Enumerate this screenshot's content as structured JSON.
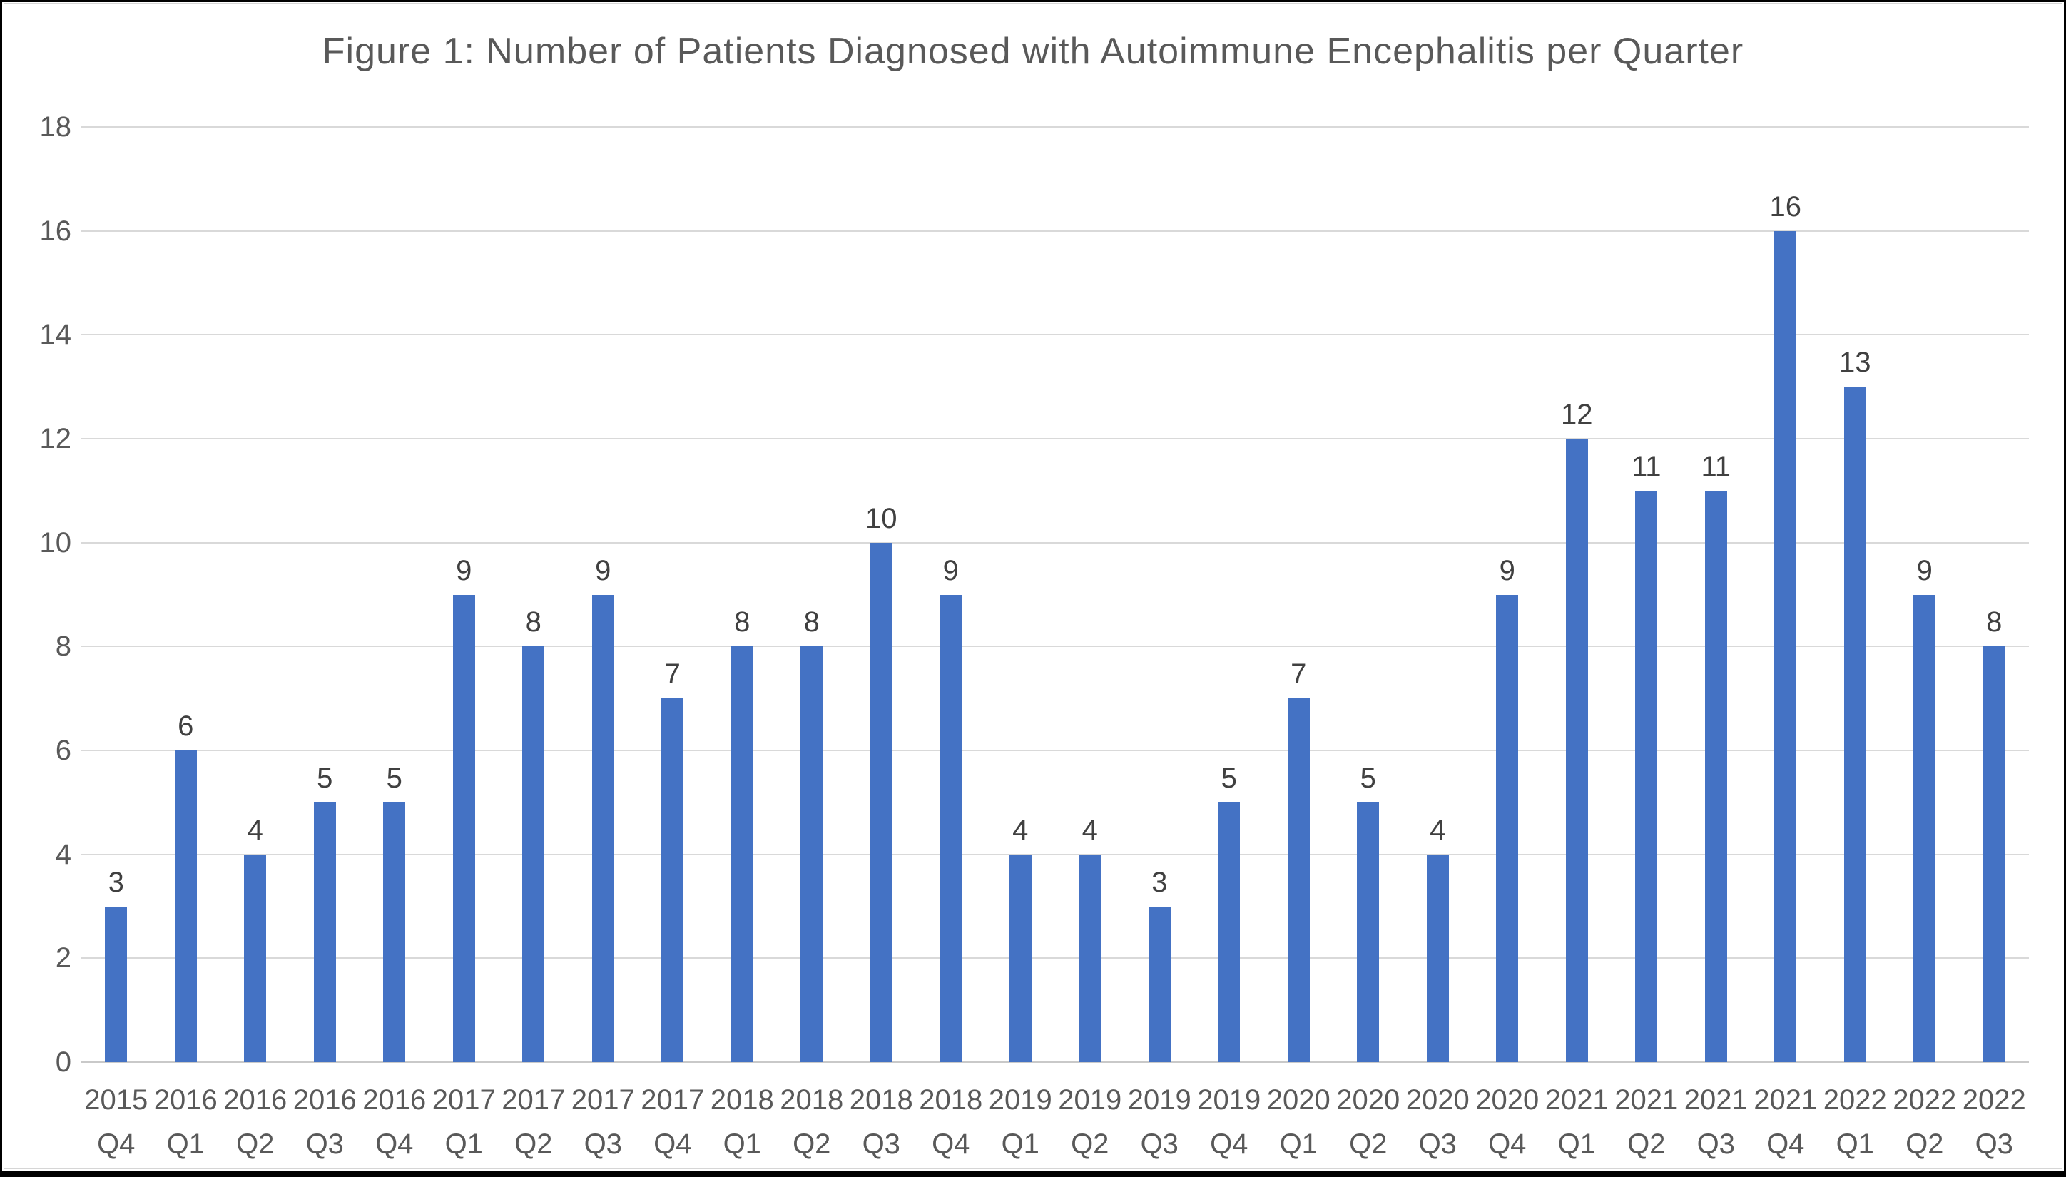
{
  "chart_data": {
    "type": "bar",
    "title": "Figure 1: Number of Patients Diagnosed with Autoimmune Encephalitis per Quarter",
    "xlabel": "",
    "ylabel": "",
    "categories": [
      [
        "2015",
        "Q4"
      ],
      [
        "2016",
        "Q1"
      ],
      [
        "2016",
        "Q2"
      ],
      [
        "2016",
        "Q3"
      ],
      [
        "2016",
        "Q4"
      ],
      [
        "2017",
        "Q1"
      ],
      [
        "2017",
        "Q2"
      ],
      [
        "2017",
        "Q3"
      ],
      [
        "2017",
        "Q4"
      ],
      [
        "2018",
        "Q1"
      ],
      [
        "2018",
        "Q2"
      ],
      [
        "2018",
        "Q3"
      ],
      [
        "2018",
        "Q4"
      ],
      [
        "2019",
        "Q1"
      ],
      [
        "2019",
        "Q2"
      ],
      [
        "2019",
        "Q3"
      ],
      [
        "2019",
        "Q4"
      ],
      [
        "2020",
        "Q1"
      ],
      [
        "2020",
        "Q2"
      ],
      [
        "2020",
        "Q3"
      ],
      [
        "2020",
        "Q4"
      ],
      [
        "2021",
        "Q1"
      ],
      [
        "2021",
        "Q2"
      ],
      [
        "2021",
        "Q3"
      ],
      [
        "2021",
        "Q4"
      ],
      [
        "2022",
        "Q1"
      ],
      [
        "2022",
        "Q2"
      ],
      [
        "2022",
        "Q3"
      ]
    ],
    "values": [
      3,
      6,
      4,
      5,
      5,
      9,
      8,
      9,
      7,
      8,
      8,
      10,
      9,
      4,
      4,
      3,
      5,
      7,
      5,
      4,
      9,
      12,
      11,
      11,
      16,
      13,
      9,
      8
    ],
    "y_ticks": [
      0,
      2,
      4,
      6,
      8,
      10,
      12,
      14,
      16,
      18
    ],
    "ylim": [
      0,
      18
    ],
    "y_tick_step": 2,
    "grid": true,
    "legend": "none",
    "data_labels": true,
    "colors": {
      "bar": "#4472C4",
      "data_label": "#404040",
      "axis_text": "#595959",
      "title_text": "#595959",
      "gridline": "#D9D9D9",
      "axis_line": "#C9C9C9",
      "chart_border": "#D6D6D6",
      "frame": "#000000",
      "background": "#FFFFFF"
    }
  }
}
